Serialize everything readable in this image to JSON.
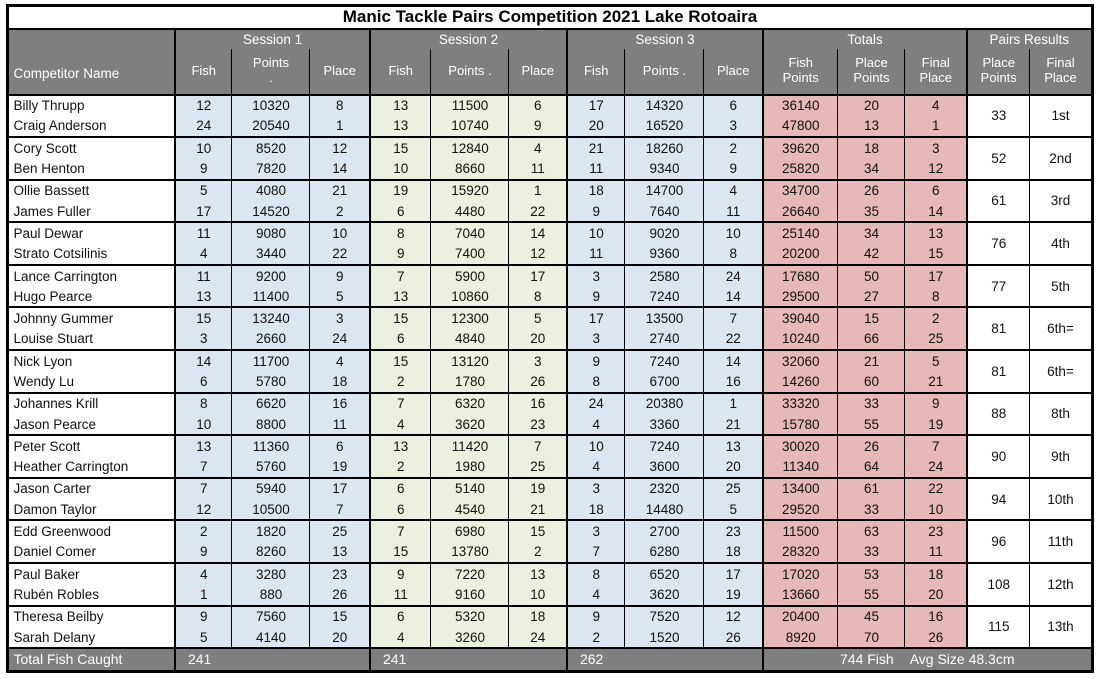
{
  "title": "Manic Tackle Pairs Competition 2021 Lake Rotoaira",
  "colors": {
    "header_bg": "#7F7F7F",
    "session_blue": "#DCE6F1",
    "session_green": "#EBF1DE",
    "totals_pink": "#E6B8B7",
    "border_col": "#000000"
  },
  "header": {
    "competitor": "Competitor Name",
    "groups": [
      {
        "label": "Session 1",
        "cols": [
          "Fish",
          "Points\n.",
          "Place"
        ]
      },
      {
        "label": "Session 2",
        "cols": [
          "Fish",
          "Points .",
          "Place"
        ]
      },
      {
        "label": "Session 3",
        "cols": [
          "Fish",
          "Points .",
          "Place"
        ]
      },
      {
        "label": "Totals",
        "cols": [
          "Fish\nPoints",
          "Place\nPoints",
          "Final\nPlace"
        ]
      },
      {
        "label": "Pairs Results",
        "cols": [
          "Place\nPoints",
          "Final\nPlace"
        ]
      }
    ]
  },
  "pairs": [
    {
      "rows": [
        {
          "name": "Billy Thrupp",
          "s1": [
            12,
            10320,
            8
          ],
          "s2": [
            13,
            11500,
            6
          ],
          "s3": [
            17,
            14320,
            6
          ],
          "totals": [
            36140,
            20,
            4
          ]
        },
        {
          "name": "Craig Anderson",
          "s1": [
            24,
            20540,
            1
          ],
          "s2": [
            13,
            10740,
            9
          ],
          "s3": [
            20,
            16520,
            3
          ],
          "totals": [
            47800,
            13,
            1
          ]
        }
      ],
      "pair_place_points": 33,
      "pair_final_place": "1st"
    },
    {
      "rows": [
        {
          "name": "Cory Scott",
          "s1": [
            10,
            8520,
            12
          ],
          "s2": [
            15,
            12840,
            4
          ],
          "s3": [
            21,
            18260,
            2
          ],
          "totals": [
            39620,
            18,
            3
          ]
        },
        {
          "name": "Ben Henton",
          "s1": [
            9,
            7820,
            14
          ],
          "s2": [
            10,
            8660,
            11
          ],
          "s3": [
            11,
            9340,
            9
          ],
          "totals": [
            25820,
            34,
            12
          ]
        }
      ],
      "pair_place_points": 52,
      "pair_final_place": "2nd"
    },
    {
      "rows": [
        {
          "name": "Ollie Bassett",
          "s1": [
            5,
            4080,
            21
          ],
          "s2": [
            19,
            15920,
            1
          ],
          "s3": [
            18,
            14700,
            4
          ],
          "totals": [
            34700,
            26,
            6
          ]
        },
        {
          "name": "James Fuller",
          "s1": [
            17,
            14520,
            2
          ],
          "s2": [
            6,
            4480,
            22
          ],
          "s3": [
            9,
            7640,
            11
          ],
          "totals": [
            26640,
            35,
            14
          ]
        }
      ],
      "pair_place_points": 61,
      "pair_final_place": "3rd"
    },
    {
      "rows": [
        {
          "name": "Paul Dewar",
          "s1": [
            11,
            9080,
            10
          ],
          "s2": [
            8,
            7040,
            14
          ],
          "s3": [
            10,
            9020,
            10
          ],
          "totals": [
            25140,
            34,
            13
          ]
        },
        {
          "name": "Strato Cotsilinis",
          "s1": [
            4,
            3440,
            22
          ],
          "s2": [
            9,
            7400,
            12
          ],
          "s3": [
            11,
            9360,
            8
          ],
          "totals": [
            20200,
            42,
            15
          ]
        }
      ],
      "pair_place_points": 76,
      "pair_final_place": "4th"
    },
    {
      "rows": [
        {
          "name": "Lance Carrington",
          "s1": [
            11,
            9200,
            9
          ],
          "s2": [
            7,
            5900,
            17
          ],
          "s3": [
            3,
            2580,
            24
          ],
          "totals": [
            17680,
            50,
            17
          ]
        },
        {
          "name": "Hugo Pearce",
          "s1": [
            13,
            11400,
            5
          ],
          "s2": [
            13,
            10860,
            8
          ],
          "s3": [
            9,
            7240,
            14
          ],
          "totals": [
            29500,
            27,
            8
          ]
        }
      ],
      "pair_place_points": 77,
      "pair_final_place": "5th"
    },
    {
      "rows": [
        {
          "name": "Johnny Gummer",
          "s1": [
            15,
            13240,
            3
          ],
          "s2": [
            15,
            12300,
            5
          ],
          "s3": [
            17,
            13500,
            7
          ],
          "totals": [
            39040,
            15,
            2
          ]
        },
        {
          "name": "Louise Stuart",
          "s1": [
            3,
            2660,
            24
          ],
          "s2": [
            6,
            4840,
            20
          ],
          "s3": [
            3,
            2740,
            22
          ],
          "totals": [
            10240,
            66,
            25
          ]
        }
      ],
      "pair_place_points": 81,
      "pair_final_place": "6th="
    },
    {
      "rows": [
        {
          "name": "Nick Lyon",
          "s1": [
            14,
            11700,
            4
          ],
          "s2": [
            15,
            13120,
            3
          ],
          "s3": [
            9,
            7240,
            14
          ],
          "totals": [
            32060,
            21,
            5
          ]
        },
        {
          "name": "Wendy Lu",
          "s1": [
            6,
            5780,
            18
          ],
          "s2": [
            2,
            1780,
            26
          ],
          "s3": [
            8,
            6700,
            16
          ],
          "totals": [
            14260,
            60,
            21
          ]
        }
      ],
      "pair_place_points": 81,
      "pair_final_place": "6th="
    },
    {
      "rows": [
        {
          "name": "Johannes Krill",
          "s1": [
            8,
            6620,
            16
          ],
          "s2": [
            7,
            6320,
            16
          ],
          "s3": [
            24,
            20380,
            1
          ],
          "totals": [
            33320,
            33,
            9
          ]
        },
        {
          "name": "Jason Pearce",
          "s1": [
            10,
            8800,
            11
          ],
          "s2": [
            4,
            3620,
            23
          ],
          "s3": [
            4,
            3360,
            21
          ],
          "totals": [
            15780,
            55,
            19
          ]
        }
      ],
      "pair_place_points": 88,
      "pair_final_place": "8th"
    },
    {
      "rows": [
        {
          "name": "Peter Scott",
          "s1": [
            13,
            11360,
            6
          ],
          "s2": [
            13,
            11420,
            7
          ],
          "s3": [
            10,
            7240,
            13
          ],
          "totals": [
            30020,
            26,
            7
          ]
        },
        {
          "name": "Heather Carrington",
          "s1": [
            7,
            5760,
            19
          ],
          "s2": [
            2,
            1980,
            25
          ],
          "s3": [
            4,
            3600,
            20
          ],
          "totals": [
            11340,
            64,
            24
          ]
        }
      ],
      "pair_place_points": 90,
      "pair_final_place": "9th"
    },
    {
      "rows": [
        {
          "name": "Jason Carter",
          "s1": [
            7,
            5940,
            17
          ],
          "s2": [
            6,
            5140,
            19
          ],
          "s3": [
            3,
            2320,
            25
          ],
          "totals": [
            13400,
            61,
            22
          ]
        },
        {
          "name": "Damon Taylor",
          "s1": [
            12,
            10500,
            7
          ],
          "s2": [
            6,
            4540,
            21
          ],
          "s3": [
            18,
            14480,
            5
          ],
          "totals": [
            29520,
            33,
            10
          ]
        }
      ],
      "pair_place_points": 94,
      "pair_final_place": "10th"
    },
    {
      "rows": [
        {
          "name": "Edd Greenwood",
          "s1": [
            2,
            1820,
            25
          ],
          "s2": [
            7,
            6980,
            15
          ],
          "s3": [
            3,
            2700,
            23
          ],
          "totals": [
            11500,
            63,
            23
          ]
        },
        {
          "name": "Daniel Comer",
          "s1": [
            9,
            8260,
            13
          ],
          "s2": [
            15,
            13780,
            2
          ],
          "s3": [
            7,
            6280,
            18
          ],
          "totals": [
            28320,
            33,
            11
          ]
        }
      ],
      "pair_place_points": 96,
      "pair_final_place": "11th"
    },
    {
      "rows": [
        {
          "name": "Paul Baker",
          "s1": [
            4,
            3280,
            23
          ],
          "s2": [
            9,
            7220,
            13
          ],
          "s3": [
            8,
            6520,
            17
          ],
          "totals": [
            17020,
            53,
            18
          ]
        },
        {
          "name": "Rubén Robles",
          "s1": [
            1,
            880,
            26
          ],
          "s2": [
            11,
            9160,
            10
          ],
          "s3": [
            4,
            3620,
            19
          ],
          "totals": [
            13660,
            55,
            20
          ]
        }
      ],
      "pair_place_points": 108,
      "pair_final_place": "12th"
    },
    {
      "rows": [
        {
          "name": "Theresa Beilby",
          "s1": [
            9,
            7560,
            15
          ],
          "s2": [
            6,
            5320,
            18
          ],
          "s3": [
            9,
            7520,
            12
          ],
          "totals": [
            20400,
            45,
            16
          ]
        },
        {
          "name": "Sarah Delany",
          "s1": [
            5,
            4140,
            20
          ],
          "s2": [
            4,
            3260,
            24
          ],
          "s3": [
            2,
            1520,
            26
          ],
          "totals": [
            8920,
            70,
            26
          ]
        }
      ],
      "pair_place_points": 115,
      "pair_final_place": "13th"
    }
  ],
  "footer": {
    "label": "Total Fish Caught",
    "session_totals": [
      "241",
      "241",
      "262"
    ],
    "total_fish": "744 Fish",
    "avg_size": "Avg Size 48.3cm"
  }
}
